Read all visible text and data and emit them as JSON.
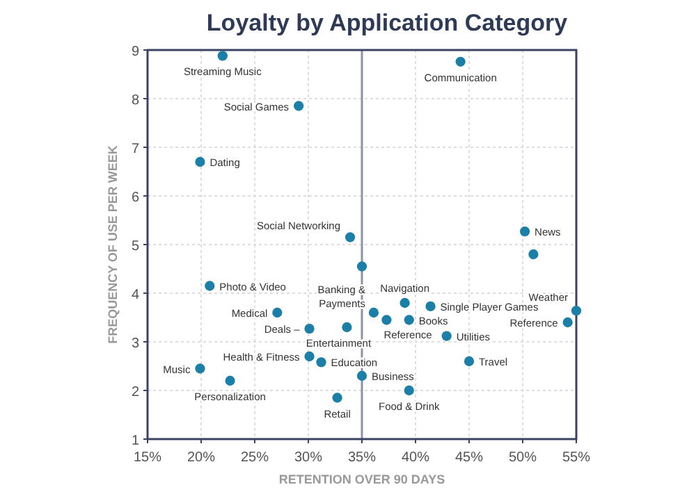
{
  "chart_data": {
    "type": "scatter",
    "title": "Loyalty by Application Category",
    "xlabel": "RETENTION OVER 90 DAYS",
    "ylabel": "FREQUENCY OF USE PER WEEK",
    "xlim": [
      15,
      55
    ],
    "ylim": [
      1,
      9
    ],
    "xticks": [
      {
        "value": 15,
        "label": "15%"
      },
      {
        "value": 20,
        "label": "20%"
      },
      {
        "value": 25,
        "label": "25%"
      },
      {
        "value": 30,
        "label": "30%"
      },
      {
        "value": 35,
        "label": "35%"
      },
      {
        "value": 40,
        "label": "40%"
      },
      {
        "value": 45,
        "label": "45%"
      },
      {
        "value": 50,
        "label": "50%"
      },
      {
        "value": 55,
        "label": "55%"
      }
    ],
    "yticks": [
      1,
      2,
      3,
      4,
      5,
      6,
      7,
      8,
      9
    ],
    "grid": true,
    "marker": "circle",
    "ref_lines": [
      {
        "axis": "x",
        "value": 35,
        "color": "#8a93a8"
      }
    ],
    "series": [
      {
        "color": "#1b7fa8",
        "x": [
          22.0,
          44.2,
          29.1,
          19.9,
          33.9,
          50.2,
          35.0,
          51.0,
          20.8,
          27.1,
          30.1,
          33.6,
          36.1,
          37.3,
          39.0,
          39.4,
          41.4,
          42.9,
          45.0,
          54.2,
          55.0,
          30.1,
          31.2,
          19.9,
          22.7,
          35.0,
          39.4,
          32.7
        ],
        "values": [
          8.88,
          8.76,
          7.85,
          6.7,
          5.15,
          5.27,
          4.55,
          4.8,
          4.15,
          3.6,
          3.27,
          3.3,
          3.6,
          3.45,
          3.8,
          3.45,
          3.73,
          3.12,
          2.6,
          3.4,
          3.64,
          2.7,
          2.58,
          2.45,
          2.2,
          2.3,
          2.0,
          1.85
        ]
      }
    ],
    "annotations": [
      {
        "text": "Streaming Music",
        "x": 22.0,
        "y": 8.88
      },
      {
        "text": "Communication",
        "x": 44.2,
        "y": 8.76
      },
      {
        "text": "Social Games",
        "x": 29.1,
        "y": 7.85
      },
      {
        "text": "Dating",
        "x": 19.9,
        "y": 6.7
      },
      {
        "text": "Social Networking",
        "x": 33.9,
        "y": 5.15
      },
      {
        "text": "News",
        "x": 50.2,
        "y": 5.27
      },
      {
        "text": "Photo & Video",
        "x": 20.8,
        "y": 4.15
      },
      {
        "text": "Medical",
        "x": 27.1,
        "y": 3.6
      },
      {
        "text": "Deals –",
        "x": 30.1,
        "y": 3.27
      },
      {
        "text": "Entertainment",
        "x": 33.6,
        "y": 3.3
      },
      {
        "text": "Banking & Payments",
        "x": 36.1,
        "y": 3.6
      },
      {
        "text": "Reference",
        "x": 37.3,
        "y": 3.45
      },
      {
        "text": "Navigation",
        "x": 39.0,
        "y": 3.8
      },
      {
        "text": "Books",
        "x": 39.4,
        "y": 3.45
      },
      {
        "text": "Single Player Games",
        "x": 41.4,
        "y": 3.73
      },
      {
        "text": "Utilities",
        "x": 42.9,
        "y": 3.12
      },
      {
        "text": "Travel",
        "x": 45.0,
        "y": 2.6
      },
      {
        "text": "Reference",
        "x": 54.2,
        "y": 3.4
      },
      {
        "text": "Weather",
        "x": 55.0,
        "y": 3.64
      },
      {
        "text": "Health & Fitness",
        "x": 30.1,
        "y": 2.7
      },
      {
        "text": "Education",
        "x": 31.2,
        "y": 2.58
      },
      {
        "text": "Music",
        "x": 19.9,
        "y": 2.45
      },
      {
        "text": "Personalization",
        "x": 22.7,
        "y": 2.2
      },
      {
        "text": "Business",
        "x": 35.0,
        "y": 2.3
      },
      {
        "text": "Food & Drink",
        "x": 39.4,
        "y": 2.0
      },
      {
        "text": "Retail",
        "x": 32.7,
        "y": 1.85
      }
    ]
  }
}
